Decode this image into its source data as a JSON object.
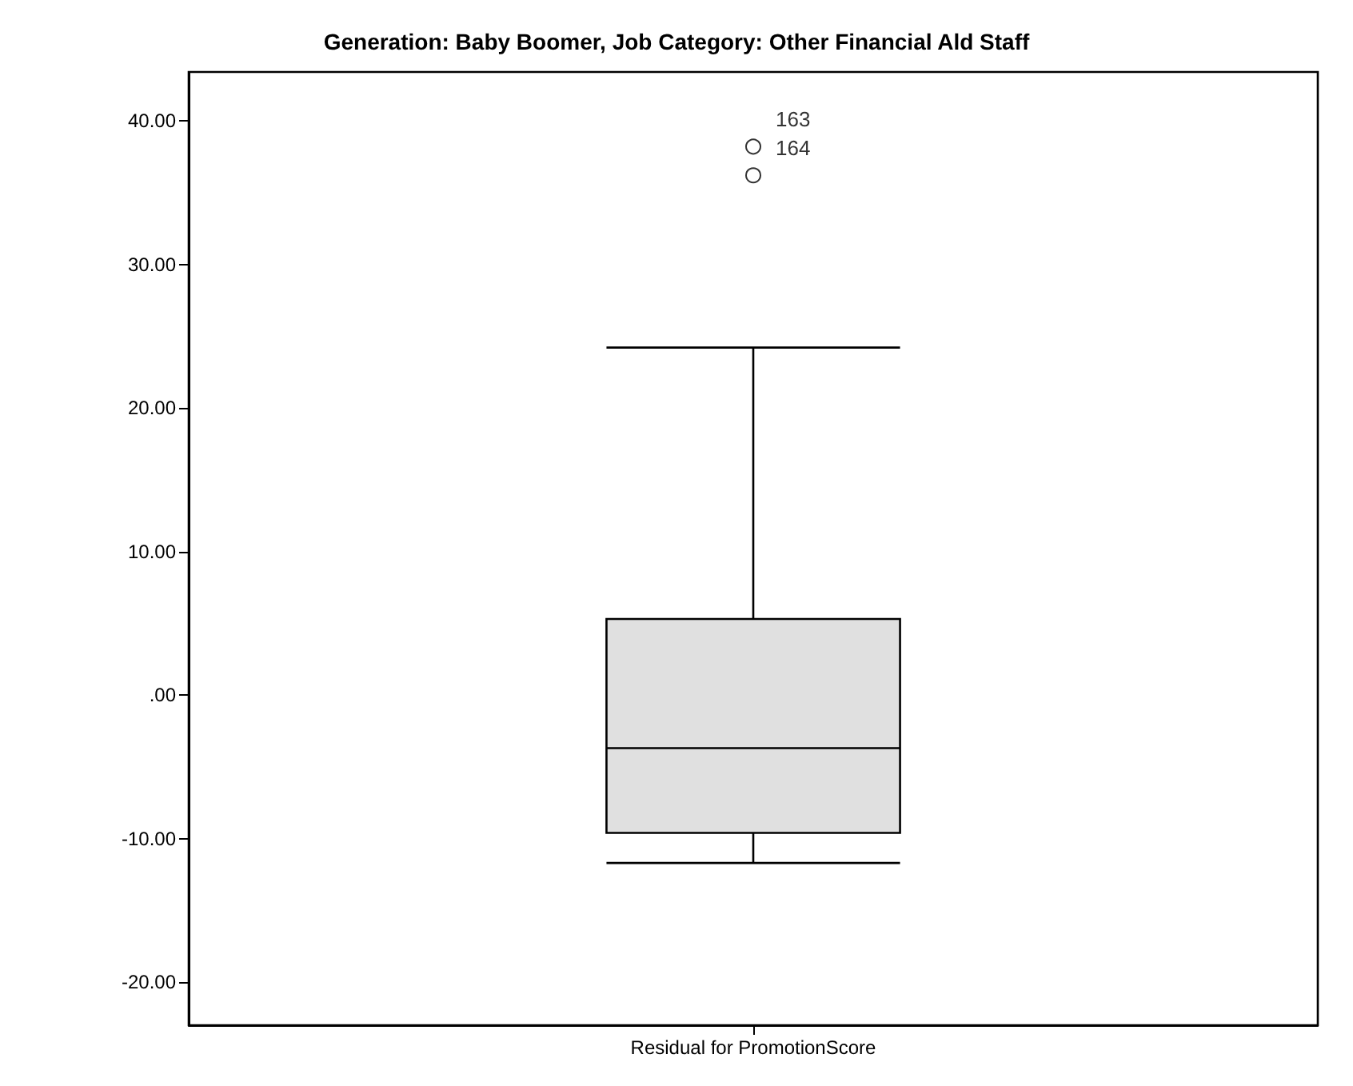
{
  "chart_data": {
    "type": "box",
    "title": "Generation: Baby Boomer, Job Category: Other Financial Ald Staff",
    "categories": [
      "Residual for PromotionScore"
    ],
    "boxes": [
      {
        "low": -11.7,
        "q1": -9.6,
        "median": -3.7,
        "q3": 5.3,
        "high": 24.2,
        "outliers": [
          38.2,
          36.2
        ]
      }
    ],
    "color": "#e0e0e0",
    "annotations": [
      "163",
      "164"
    ],
    "ylim": [
      -23,
      43.4
    ],
    "yticks": [
      {
        "value": -20,
        "label": "-20.00"
      },
      {
        "value": -10,
        "label": "-10.00"
      },
      {
        "value": 0,
        "label": ".00"
      },
      {
        "value": 10,
        "label": "10.00"
      },
      {
        "value": 20,
        "label": "20.00"
      },
      {
        "value": 30,
        "label": "30.00"
      },
      {
        "value": 40,
        "label": "40.00"
      }
    ],
    "grid": false
  }
}
